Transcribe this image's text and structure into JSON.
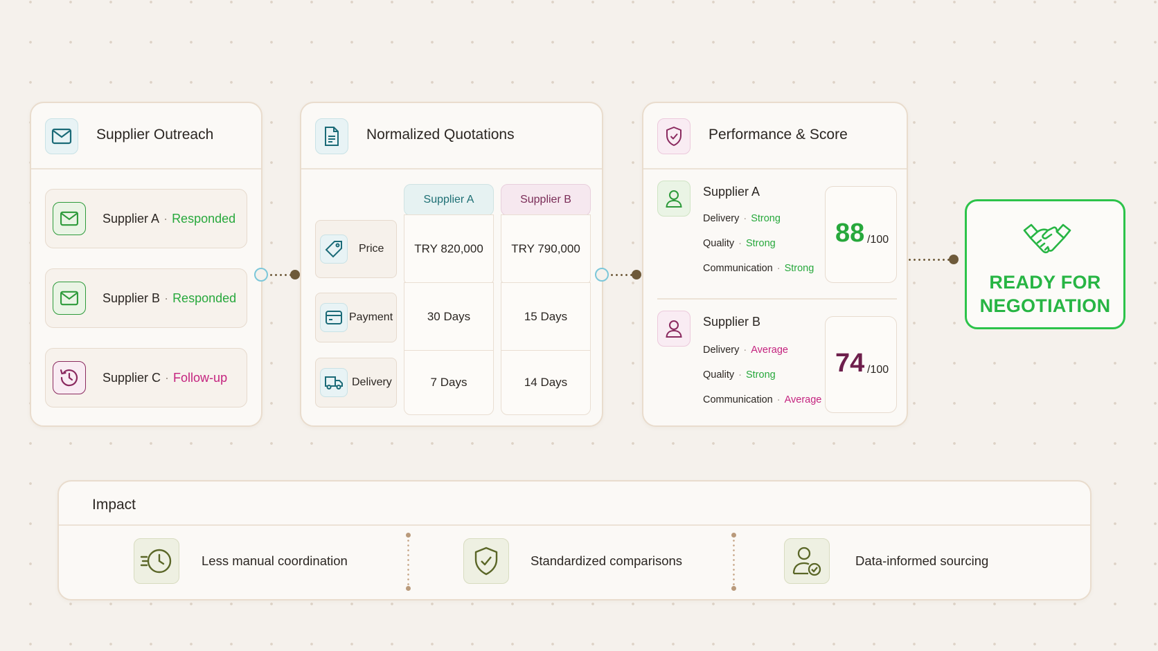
{
  "outreach": {
    "title": "Supplier Outreach",
    "rows": [
      {
        "supplier": "Supplier A",
        "status": "Responded"
      },
      {
        "supplier": "Supplier B",
        "status": "Responded"
      },
      {
        "supplier": "Supplier C",
        "status": "Follow-up"
      }
    ]
  },
  "quotations": {
    "title": "Normalized Quotations",
    "columns": [
      "Supplier A",
      "Supplier B"
    ],
    "rows": [
      {
        "label": "Price",
        "values": [
          "TRY 820,000",
          "TRY 790,000"
        ]
      },
      {
        "label": "Payment",
        "values": [
          "30 Days",
          "15 Days"
        ]
      },
      {
        "label": "Delivery",
        "values": [
          "7 Days",
          "14 Days"
        ]
      }
    ]
  },
  "performance": {
    "title": "Performance & Score",
    "suppliers": [
      {
        "name": "Supplier A",
        "metrics": [
          {
            "label": "Delivery",
            "value": "Strong"
          },
          {
            "label": "Quality",
            "value": "Strong"
          },
          {
            "label": "Communication",
            "value": "Strong"
          }
        ],
        "score": "88",
        "max": "/100",
        "score_color": "#27a83c"
      },
      {
        "name": "Supplier B",
        "metrics": [
          {
            "label": "Delivery",
            "value": "Average"
          },
          {
            "label": "Quality",
            "value": "Strong"
          },
          {
            "label": "Communication",
            "value": "Average"
          }
        ],
        "score": "74",
        "max": "/100",
        "score_color": "#6e1f4c"
      }
    ]
  },
  "ready": {
    "line1": "READY FOR",
    "line2": "NEGOTIATION"
  },
  "impact": {
    "title": "Impact",
    "items": [
      {
        "label": "Less manual coordination",
        "icon": "fast-clock-icon"
      },
      {
        "label": "Standardized comparisons",
        "icon": "shield-check-icon"
      },
      {
        "label": "Data-informed sourcing",
        "icon": "user-check-icon"
      }
    ]
  },
  "colors": {
    "green": "#27a83c",
    "pink": "#c4237f",
    "teal": "#1a6a77",
    "ready_green": "#2cc34a"
  }
}
